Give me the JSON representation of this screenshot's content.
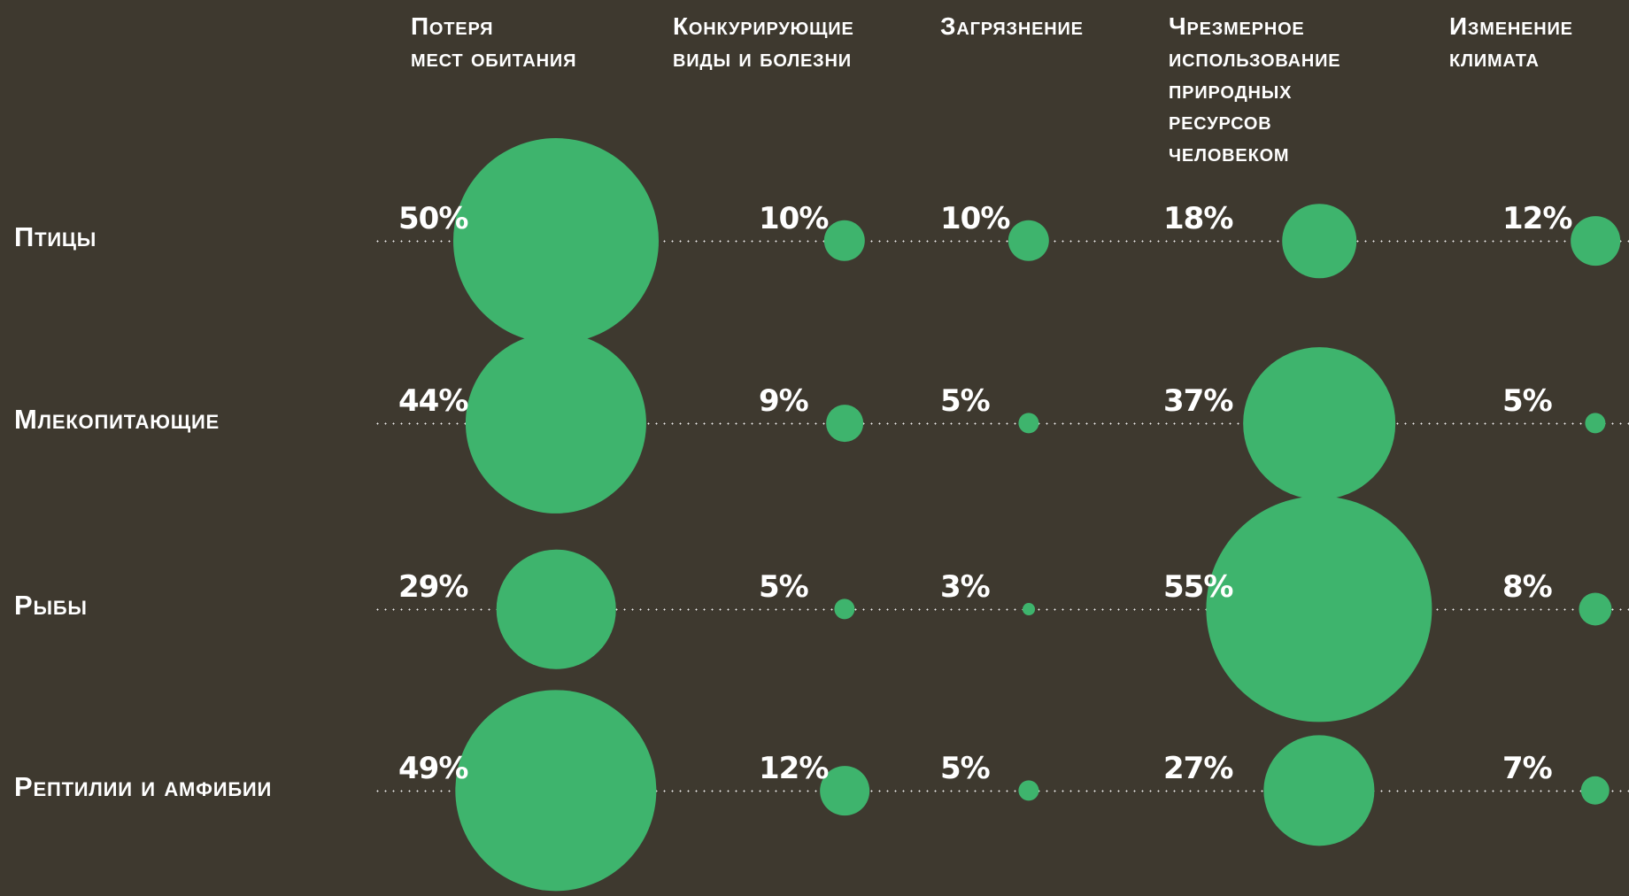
{
  "chart_data": {
    "type": "bubble",
    "unit": "%",
    "columns": [
      {
        "label": "Потеря\nмест обитания"
      },
      {
        "label": "Конкурирующие\nвиды и болезни"
      },
      {
        "label": "Загрязнение"
      },
      {
        "label": "Чрезмерное\nиспользование\nприродных\nресурсов\nчеловеком"
      },
      {
        "label": "Изменение\nклимата"
      }
    ],
    "rows": [
      {
        "label": "Птицы",
        "values": [
          50,
          10,
          10,
          18,
          12
        ]
      },
      {
        "label": "Млекопитающие",
        "values": [
          44,
          9,
          5,
          37,
          5
        ]
      },
      {
        "label": "Рыбы",
        "values": [
          29,
          5,
          3,
          55,
          8
        ]
      },
      {
        "label": "Рептилии и амфибии",
        "values": [
          49,
          12,
          5,
          27,
          7
        ]
      }
    ],
    "layout_hints": {
      "bubble_size": "radius proportional to percentage",
      "grid": "horizontal dotted row lines",
      "value_labels": "left of each bubble, above line"
    },
    "colors": {
      "background": "#3e392f",
      "bubble": "#3eb46d",
      "text": "#ffffff",
      "dotted_line": "#ffffff"
    }
  }
}
